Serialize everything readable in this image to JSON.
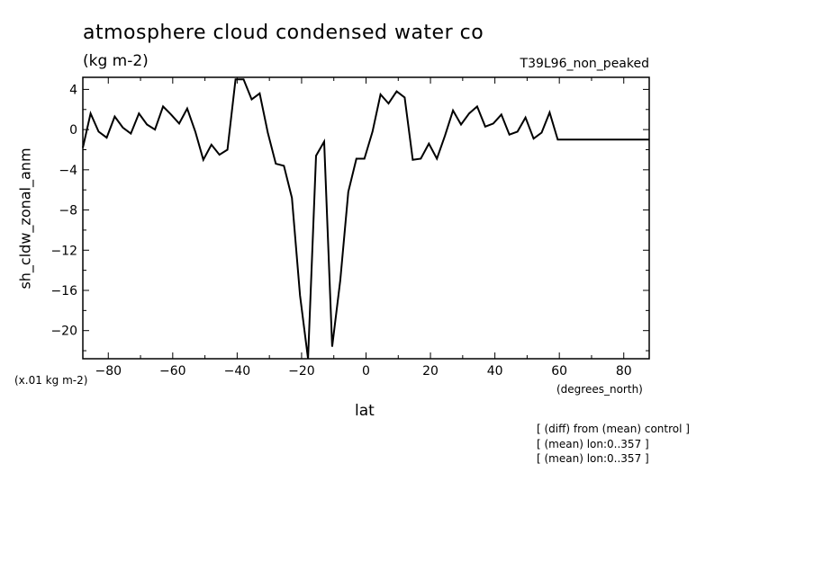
{
  "chart_data": {
    "type": "line",
    "title": "atmosphere cloud condensed water co",
    "units": "(kg m-2)",
    "run_label": "T39L96_non_peaked",
    "ylabel": "sh_cldw_zonal_anm",
    "xlabel": "lat",
    "x_units": "(degrees_north)",
    "scale_note": "(x.01 kg m-2)",
    "xlim": [
      -87.9,
      87.9
    ],
    "ylim": [
      -22.8,
      5.2
    ],
    "x_ticks": [
      -80,
      -60,
      -40,
      -20,
      0,
      20,
      40,
      60,
      80
    ],
    "y_ticks": [
      4,
      0,
      -4,
      -8,
      -12,
      -16,
      -20
    ],
    "grid": false,
    "series": [
      {
        "x": [
          -87.9,
          -85.5,
          -83.0,
          -80.5,
          -78.0,
          -75.5,
          -73.0,
          -70.5,
          -68.0,
          -65.5,
          -63.0,
          -60.5,
          -58.0,
          -55.5,
          -53.0,
          -50.5,
          -48.0,
          -45.5,
          -43.0,
          -40.5,
          -38.0,
          -35.5,
          -33.0,
          -30.5,
          -28.0,
          -25.5,
          -23.0,
          -20.5,
          -18.0,
          -15.5,
          -13.0,
          -10.5,
          -8.0,
          -5.5,
          -3.0,
          -0.5,
          2.0,
          4.5,
          7.0,
          9.5,
          12.0,
          14.5,
          17.0,
          19.5,
          22.0,
          24.5,
          27.0,
          29.5,
          32.0,
          34.5,
          37.0,
          39.5,
          42.0,
          44.5,
          47.0,
          49.5,
          52.0,
          54.5,
          57.0,
          59.5,
          62.0,
          64.5,
          67.0,
          69.5,
          72.0,
          74.5,
          77.0,
          79.5,
          82.0,
          84.5,
          87.0,
          87.9
        ],
        "y": [
          -1.8,
          1.6,
          -0.2,
          -0.8,
          1.3,
          0.2,
          -0.4,
          1.6,
          0.5,
          0.0,
          2.3,
          1.5,
          0.6,
          2.1,
          -0.2,
          -3.0,
          -1.5,
          -2.5,
          -2.0,
          5.0,
          5.0,
          3.0,
          3.6,
          -0.3,
          -3.4,
          -3.6,
          -6.8,
          -16.5,
          -22.8,
          -2.6,
          -1.2,
          -21.6,
          -15.0,
          -6.2,
          -2.9,
          -2.9,
          -0.2,
          3.5,
          2.6,
          3.8,
          3.2,
          -3.0,
          -2.9,
          -1.4,
          -2.9,
          -0.6,
          1.9,
          0.5,
          1.6,
          2.3,
          0.3,
          0.6,
          1.5,
          -0.5,
          -0.2,
          1.2,
          -0.9,
          -0.3,
          1.7,
          -1.0,
          -1.0,
          -1.0,
          -1.0,
          -1.0,
          -1.0,
          -1.0,
          -1.0,
          -1.0,
          -1.0,
          -1.0,
          -1.0,
          -1.0
        ]
      }
    ]
  },
  "annotations": [
    "[ (diff) from (mean) control ]",
    "[ (mean) lon:0..357 ]",
    "[ (mean) lon:0..357 ]"
  ]
}
